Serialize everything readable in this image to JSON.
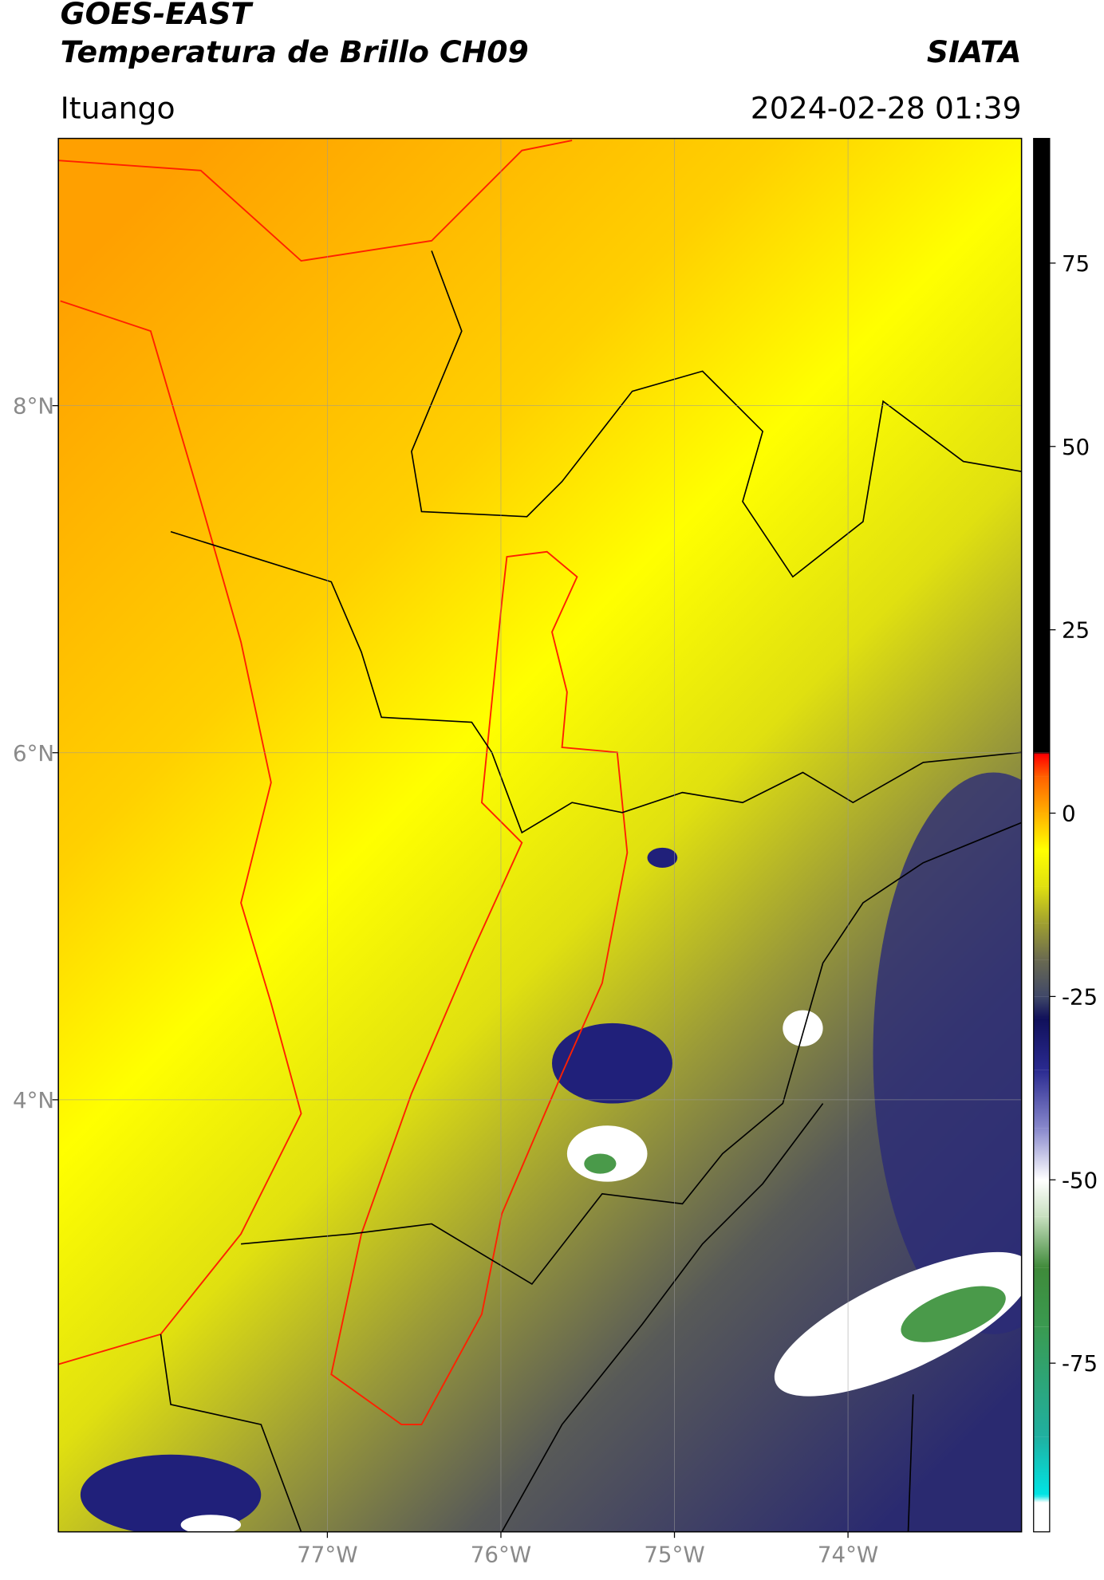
{
  "chart_data": {
    "type": "map",
    "title": "GOES-EAST",
    "subtitle": "Temperatura de Brillo CH09",
    "source": "SIATA",
    "location": "Ituango",
    "timestamp": "2024-02-28 01:39",
    "xlim": [
      -78.55,
      -73.0
    ],
    "ylim": [
      1.51,
      9.54
    ],
    "xticks": [
      {
        "value": -77,
        "label": "77°W"
      },
      {
        "value": -76,
        "label": "76°W"
      },
      {
        "value": -75,
        "label": "75°W"
      },
      {
        "value": -74,
        "label": "74°W"
      }
    ],
    "yticks": [
      {
        "value": 4,
        "label": "4°N"
      },
      {
        "value": 6,
        "label": "6°N"
      },
      {
        "value": 8,
        "label": "8°N"
      }
    ],
    "grid": true,
    "colorbar": {
      "lim": [
        -98,
        92
      ],
      "ticks": [
        -75,
        -50,
        -25,
        0,
        25,
        50,
        75
      ],
      "stops": [
        {
          "value": -98,
          "color": "#ffffff"
        },
        {
          "value": -94,
          "color": "#ffffff"
        },
        {
          "value": -93,
          "color": "#00e5e5"
        },
        {
          "value": -85,
          "color": "#20b0a0"
        },
        {
          "value": -70,
          "color": "#3a9a50"
        },
        {
          "value": -62,
          "color": "#3f8a3a"
        },
        {
          "value": -55,
          "color": "#c8e0c0"
        },
        {
          "value": -50,
          "color": "#ffffff"
        },
        {
          "value": -43,
          "color": "#8888cc"
        },
        {
          "value": -35,
          "color": "#2a2a90"
        },
        {
          "value": -28,
          "color": "#10105a"
        },
        {
          "value": -25,
          "color": "#404868"
        },
        {
          "value": -20,
          "color": "#6a6a50"
        },
        {
          "value": -15,
          "color": "#a0a030"
        },
        {
          "value": -10,
          "color": "#e0e010"
        },
        {
          "value": -5,
          "color": "#ffff00"
        },
        {
          "value": 0,
          "color": "#ffb000"
        },
        {
          "value": 5,
          "color": "#ff6000"
        },
        {
          "value": 8,
          "color": "#ff0000"
        },
        {
          "value": 8.3,
          "color": "#000000"
        },
        {
          "value": 92,
          "color": "#000000"
        }
      ]
    }
  }
}
